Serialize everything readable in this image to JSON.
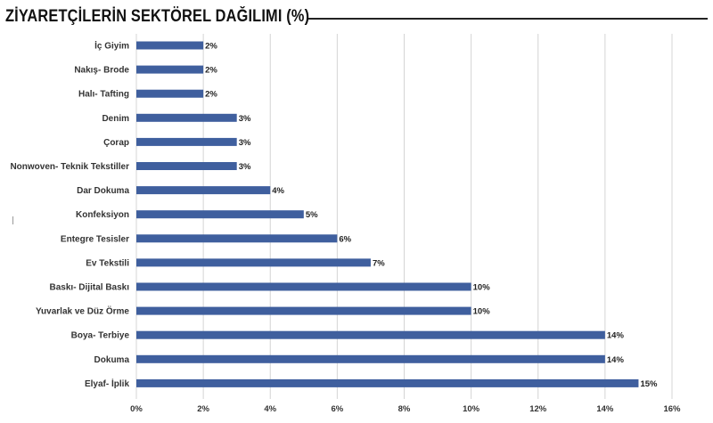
{
  "title": "ZİYARETÇİLERİN SEKTÖREL DAĞILIMI (%)",
  "colors": {
    "bar": "#3f5f9e",
    "grid": "#d4d4d4",
    "title_rule": "#222222"
  },
  "chart_data": {
    "type": "bar",
    "orientation": "horizontal",
    "title": "ZİYARETÇİLERİN SEKTÖREL DAĞILIMI (%)",
    "categories": [
      "İç Giyim",
      "Nakış- Brode",
      "Halı- Tafting",
      "Denim",
      "Çorap",
      "Nonwoven- Teknik Tekstiller",
      "Dar Dokuma",
      "Konfeksiyon",
      "Entegre Tesisler",
      "Ev Tekstili",
      "Baskı- Dijital Baskı",
      "Yuvarlak ve Düz Örme",
      "Boya- Terbiye",
      "Dokuma",
      "Elyaf- İplik"
    ],
    "values": [
      2,
      2,
      2,
      3,
      3,
      3,
      4,
      5,
      6,
      7,
      10,
      10,
      14,
      14,
      15
    ],
    "value_labels": [
      "2%",
      "2%",
      "2%",
      "3%",
      "3%",
      "3%",
      "4%",
      "5%",
      "6%",
      "7%",
      "10%",
      "10%",
      "14%",
      "14%",
      "15%"
    ],
    "xlim": [
      0,
      16
    ],
    "x_ticks": [
      0,
      2,
      4,
      6,
      8,
      10,
      12,
      14,
      16
    ],
    "x_tick_labels": [
      "0%",
      "2%",
      "4%",
      "6%",
      "8%",
      "10%",
      "12%",
      "14%",
      "16%"
    ],
    "xlabel": "",
    "ylabel": "",
    "grid": true,
    "legend": "none"
  }
}
